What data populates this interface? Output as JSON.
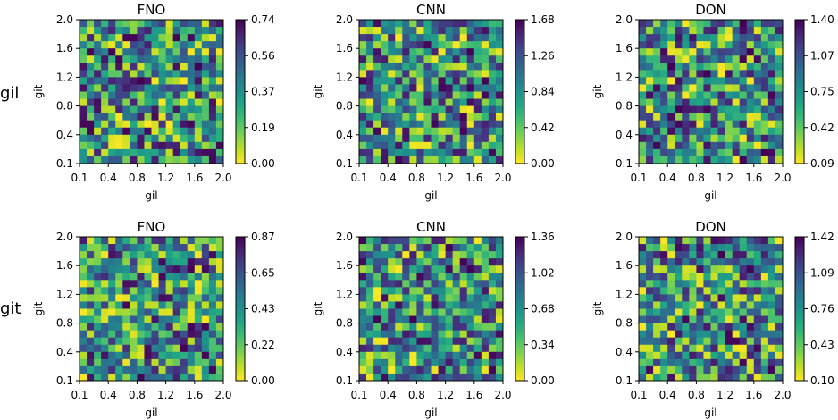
{
  "figure": {
    "row_labels": [
      "gil",
      "git"
    ]
  },
  "chart_data": [
    {
      "type": "heatmap",
      "row": 0,
      "col": 0,
      "title": "FNO",
      "xlabel": "gil",
      "ylabel": "git",
      "xticks": [
        "0.1",
        "0.4",
        "0.8",
        "1.2",
        "1.6",
        "2.0"
      ],
      "yticks": [
        "0.1",
        "0.4",
        "0.8",
        "1.2",
        "1.6",
        "2.0"
      ],
      "grid": {
        "rows": 20,
        "cols": 20
      },
      "colorbar": {
        "min": 0.0,
        "max": 0.74,
        "ticks": [
          "0.00",
          "0.19",
          "0.37",
          "0.56",
          "0.74"
        ]
      },
      "colormap": "viridis_r"
    },
    {
      "type": "heatmap",
      "row": 0,
      "col": 1,
      "title": "CNN",
      "xlabel": "gil",
      "ylabel": "git",
      "xticks": [
        "0.1",
        "0.4",
        "0.8",
        "1.2",
        "1.6",
        "2.0"
      ],
      "yticks": [
        "0.1",
        "0.4",
        "0.8",
        "1.2",
        "1.6",
        "2.0"
      ],
      "grid": {
        "rows": 20,
        "cols": 20
      },
      "colorbar": {
        "min": 0.0,
        "max": 1.68,
        "ticks": [
          "0.00",
          "0.42",
          "0.84",
          "1.26",
          "1.68"
        ]
      },
      "colormap": "viridis_r"
    },
    {
      "type": "heatmap",
      "row": 0,
      "col": 2,
      "title": "DON",
      "xlabel": "gil",
      "ylabel": "git",
      "xticks": [
        "0.1",
        "0.4",
        "0.8",
        "1.2",
        "1.6",
        "2.0"
      ],
      "yticks": [
        "0.1",
        "0.4",
        "0.8",
        "1.2",
        "1.6",
        "2.0"
      ],
      "grid": {
        "rows": 20,
        "cols": 20
      },
      "colorbar": {
        "min": 0.09,
        "max": 1.4,
        "ticks": [
          "0.09",
          "0.42",
          "0.75",
          "1.07",
          "1.40"
        ]
      },
      "colormap": "viridis_r"
    },
    {
      "type": "heatmap",
      "row": 1,
      "col": 0,
      "title": "FNO",
      "xlabel": "gil",
      "ylabel": "git",
      "xticks": [
        "0.1",
        "0.4",
        "0.8",
        "1.2",
        "1.6",
        "2.0"
      ],
      "yticks": [
        "0.1",
        "0.4",
        "0.8",
        "1.2",
        "1.6",
        "2.0"
      ],
      "grid": {
        "rows": 20,
        "cols": 20
      },
      "colorbar": {
        "min": 0.0,
        "max": 0.87,
        "ticks": [
          "0.00",
          "0.22",
          "0.43",
          "0.65",
          "0.87"
        ]
      },
      "colormap": "viridis_r"
    },
    {
      "type": "heatmap",
      "row": 1,
      "col": 1,
      "title": "CNN",
      "xlabel": "gil",
      "ylabel": "git",
      "xticks": [
        "0.1",
        "0.4",
        "0.8",
        "1.2",
        "1.6",
        "2.0"
      ],
      "yticks": [
        "0.1",
        "0.4",
        "0.8",
        "1.2",
        "1.6",
        "2.0"
      ],
      "grid": {
        "rows": 20,
        "cols": 20
      },
      "colorbar": {
        "min": 0.0,
        "max": 1.36,
        "ticks": [
          "0.00",
          "0.34",
          "0.68",
          "1.02",
          "1.36"
        ]
      },
      "colormap": "viridis_r"
    },
    {
      "type": "heatmap",
      "row": 1,
      "col": 2,
      "title": "DON",
      "xlabel": "gil",
      "ylabel": "git",
      "xticks": [
        "0.1",
        "0.4",
        "0.8",
        "1.2",
        "1.6",
        "2.0"
      ],
      "yticks": [
        "0.1",
        "0.4",
        "0.8",
        "1.2",
        "1.6",
        "2.0"
      ],
      "grid": {
        "rows": 20,
        "cols": 20
      },
      "colorbar": {
        "min": 0.1,
        "max": 1.42,
        "ticks": [
          "0.10",
          "0.43",
          "0.76",
          "1.09",
          "1.42"
        ]
      },
      "colormap": "viridis_r"
    }
  ]
}
